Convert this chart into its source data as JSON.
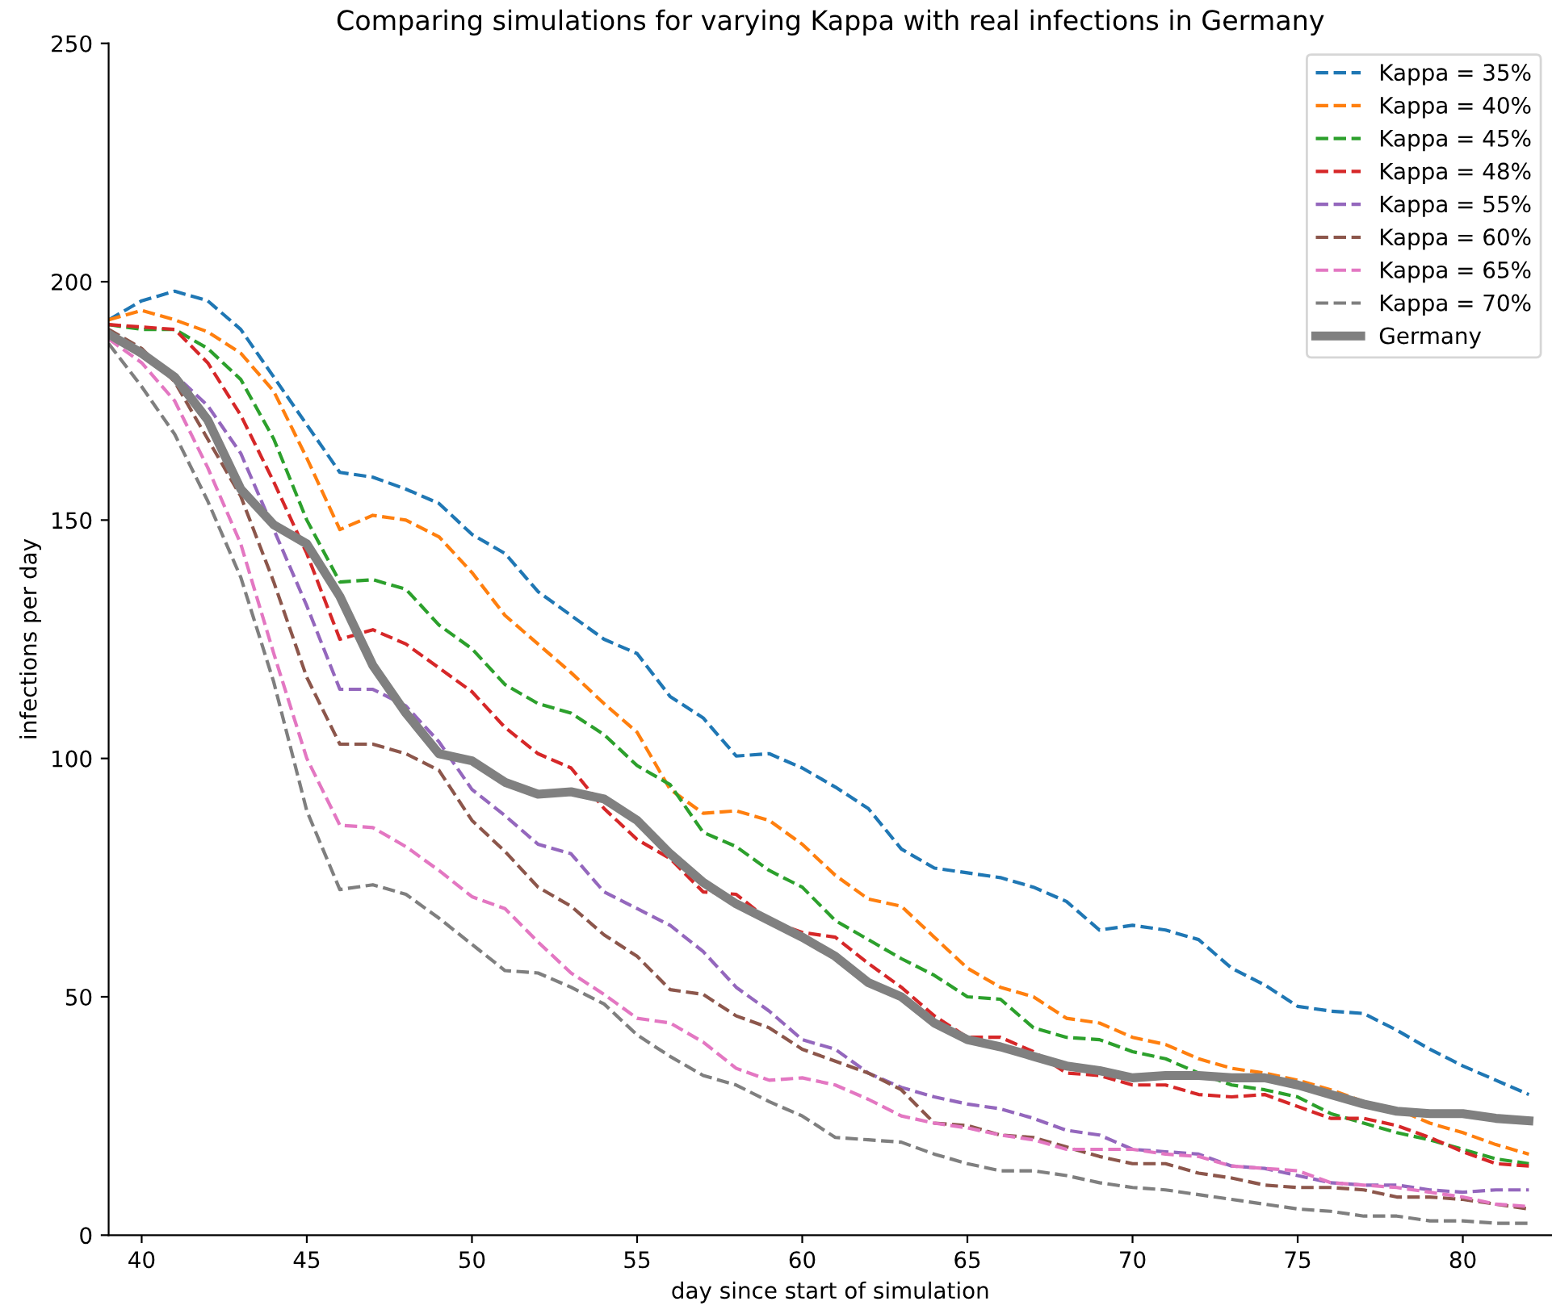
{
  "chart_data": {
    "type": "line",
    "title": "Comparing simulations for varying Kappa with real infections in Germany",
    "xlabel": "day since start of simulation",
    "ylabel": "infections per day",
    "x": [
      39,
      40,
      41,
      42,
      43,
      44,
      45,
      46,
      47,
      48,
      49,
      50,
      51,
      52,
      53,
      54,
      55,
      56,
      57,
      58,
      59,
      60,
      61,
      62,
      63,
      64,
      65,
      66,
      67,
      68,
      69,
      70,
      71,
      72,
      73,
      74,
      75,
      76,
      77,
      78,
      79,
      80,
      81,
      82
    ],
    "xlim": [
      39,
      82.7
    ],
    "ylim": [
      0,
      250
    ],
    "xticks": [
      40,
      45,
      50,
      55,
      60,
      65,
      70,
      75,
      80
    ],
    "yticks": [
      0,
      50,
      100,
      150,
      200,
      250
    ],
    "grid": false,
    "legend": "top right",
    "series": [
      {
        "name": "Kappa = 35%",
        "color": "#1f77b4",
        "line_style": "dashed",
        "values": [
          192,
          196,
          198,
          196,
          190,
          180,
          170,
          160,
          159,
          156.5,
          153.5,
          147,
          143,
          135,
          130,
          125,
          122,
          113,
          108.5,
          100.5,
          101,
          98,
          94,
          89.5,
          81,
          77,
          76,
          75,
          73,
          70,
          64,
          65,
          64,
          62,
          56,
          52.5,
          48,
          47,
          46.5,
          43,
          39,
          35.5,
          32.5,
          29.5
        ]
      },
      {
        "name": "Kappa = 40%",
        "color": "#ff7f0e",
        "line_style": "dashed",
        "values": [
          192,
          194,
          192,
          189.5,
          185,
          177,
          163,
          148,
          151,
          150,
          146.5,
          139,
          130,
          124,
          118,
          111.5,
          105.5,
          93.5,
          88.5,
          89,
          87,
          82,
          75.5,
          70.5,
          69,
          62.5,
          56,
          52,
          50,
          45.5,
          44.5,
          41.5,
          40,
          37,
          35,
          34,
          32.5,
          30.5,
          28,
          26.5,
          23.5,
          21.5,
          19,
          17
        ]
      },
      {
        "name": "Kappa = 45%",
        "color": "#2ca02c",
        "line_style": "dashed",
        "values": [
          191,
          190,
          190,
          186,
          179.5,
          167,
          150,
          137,
          137.5,
          135.5,
          128,
          123,
          115.5,
          111.5,
          109.5,
          105,
          98.5,
          94.5,
          84.5,
          81.5,
          76.5,
          73,
          66,
          62,
          58,
          54.5,
          50,
          49.5,
          43.5,
          41.5,
          41,
          38.5,
          37,
          34,
          31.5,
          30.5,
          29,
          25.5,
          23.5,
          21.5,
          20,
          18,
          16,
          15
        ]
      },
      {
        "name": "Kappa = 48%",
        "color": "#d62728",
        "line_style": "dashed",
        "values": [
          191,
          190.5,
          190,
          183,
          172,
          158,
          143,
          125,
          127,
          124,
          119,
          114,
          106.5,
          101,
          98,
          89.5,
          83,
          79,
          72,
          71.5,
          66,
          63.5,
          62.5,
          57,
          52,
          46,
          41.5,
          41.5,
          38.5,
          34,
          33.5,
          31.5,
          31.5,
          29.5,
          29,
          29.5,
          27,
          24.5,
          24.5,
          23,
          20.5,
          17.5,
          15,
          14.5
        ]
      },
      {
        "name": "Kappa = 55%",
        "color": "#9467bd",
        "line_style": "dashed",
        "values": [
          189,
          185,
          180.5,
          174,
          164,
          148,
          132,
          114.5,
          114.5,
          111,
          103.5,
          93.5,
          88,
          82,
          80,
          72,
          68.5,
          65,
          59.5,
          52,
          47,
          41,
          39,
          34,
          31,
          29,
          27.5,
          26.5,
          24.5,
          22,
          21,
          18,
          17.5,
          17,
          14.5,
          14,
          12.5,
          11,
          10.5,
          10.5,
          9.5,
          9,
          9.5,
          9.5
        ]
      },
      {
        "name": "Kappa = 60%",
        "color": "#8c564b",
        "line_style": "dashed",
        "values": [
          190,
          186,
          179,
          167,
          155,
          137,
          117,
          103,
          103,
          101,
          97.5,
          87,
          80.5,
          73,
          69,
          63,
          58.5,
          51.5,
          50.5,
          46,
          43.5,
          39,
          36.5,
          34,
          30.5,
          23.5,
          23,
          21,
          20.5,
          18.5,
          16.5,
          15,
          15,
          13,
          12,
          10.5,
          10,
          10,
          9.5,
          8,
          8,
          7.5,
          6.5,
          5.5
        ]
      },
      {
        "name": "Kappa = 65%",
        "color": "#e377c2",
        "line_style": "dashed",
        "values": [
          188,
          183,
          175,
          161,
          145,
          122,
          100,
          86,
          85.5,
          81.5,
          76.5,
          71,
          68.5,
          61.5,
          55,
          50.5,
          45.5,
          44.5,
          40.5,
          35,
          32.5,
          33,
          31.5,
          28.5,
          25,
          23.5,
          22.5,
          21,
          20,
          18,
          18,
          18,
          17,
          16.5,
          14.5,
          14,
          13.5,
          11,
          10.5,
          10,
          9,
          8,
          6.5,
          6
        ]
      },
      {
        "name": "Kappa = 70%",
        "color": "#7f7f7f",
        "line_style": "dashed",
        "values": [
          187,
          178,
          168,
          154,
          138,
          116,
          89,
          72.5,
          73.5,
          71.5,
          66.5,
          61,
          55.5,
          55,
          52,
          48.5,
          42,
          37.5,
          33.5,
          31.5,
          28,
          25,
          20.5,
          20,
          19.5,
          17,
          15,
          13.5,
          13.5,
          12.5,
          11,
          10,
          9.5,
          8.5,
          7.5,
          6.5,
          5.5,
          5,
          4,
          4,
          3,
          3,
          2.5,
          2.5
        ]
      },
      {
        "name": "Germany",
        "color": "#808080",
        "line_style": "solid",
        "values": [
          189,
          185,
          180,
          171,
          156.5,
          149,
          145,
          134,
          119.5,
          109.5,
          101,
          99.5,
          95,
          92.5,
          93,
          91.5,
          87,
          80,
          74,
          69.5,
          66,
          62.5,
          58.5,
          53,
          50,
          44.5,
          41,
          39.5,
          37.5,
          35.5,
          34.5,
          33,
          33.5,
          33.5,
          33,
          33,
          31.5,
          29.5,
          27.5,
          26,
          25.5,
          25.5,
          24.5,
          24
        ]
      }
    ]
  }
}
